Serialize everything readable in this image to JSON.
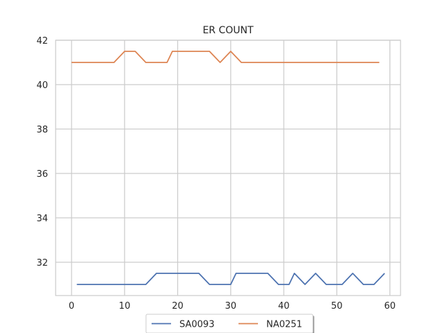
{
  "chart_data": {
    "type": "line",
    "title": "ER COUNT",
    "xlabel": "",
    "ylabel": "",
    "xlim": [
      -3,
      62
    ],
    "ylim": [
      30.5,
      42
    ],
    "xticks": [
      0,
      10,
      20,
      30,
      40,
      50,
      60
    ],
    "yticks": [
      32,
      34,
      36,
      38,
      40,
      42
    ],
    "grid": true,
    "legend_position": "bottom-center",
    "series": [
      {
        "name": "SA0093",
        "color": "#4c72b0",
        "x": [
          1,
          2,
          3,
          4,
          5,
          6,
          7,
          8,
          9,
          10,
          11,
          12,
          13,
          14,
          15,
          16,
          17,
          18,
          19,
          20,
          21,
          22,
          23,
          24,
          25,
          26,
          27,
          28,
          29,
          30,
          31,
          32,
          33,
          34,
          35,
          36,
          37,
          38,
          39,
          40,
          41,
          42,
          43,
          44,
          45,
          46,
          47,
          48,
          49,
          50,
          51,
          52,
          53,
          54,
          55,
          56,
          57,
          58,
          59
        ],
        "values": [
          31,
          31,
          31,
          31,
          31,
          31,
          31,
          31,
          31,
          31,
          31,
          31,
          31,
          31,
          31.25,
          31.5,
          31.5,
          31.5,
          31.5,
          31.5,
          31.5,
          31.5,
          31.5,
          31.5,
          31.25,
          31,
          31,
          31,
          31,
          31,
          31.5,
          31.5,
          31.5,
          31.5,
          31.5,
          31.5,
          31.5,
          31.25,
          31,
          31,
          31,
          31.5,
          31.25,
          31,
          31.25,
          31.5,
          31.25,
          31,
          31,
          31,
          31,
          31.25,
          31.5,
          31.25,
          31,
          31,
          31,
          31.25,
          31.5
        ]
      },
      {
        "name": "NA0251",
        "color": "#dd8452",
        "x": [
          0,
          1,
          2,
          3,
          4,
          5,
          6,
          7,
          8,
          9,
          10,
          11,
          12,
          13,
          14,
          15,
          16,
          17,
          18,
          19,
          20,
          21,
          22,
          23,
          24,
          25,
          26,
          27,
          28,
          29,
          30,
          31,
          32,
          33,
          34,
          35,
          36,
          37,
          38,
          39,
          40,
          41,
          42,
          43,
          44,
          45,
          46,
          47,
          48,
          49,
          50,
          51,
          52,
          53,
          54,
          55,
          56,
          57,
          58
        ],
        "values": [
          41,
          41,
          41,
          41,
          41,
          41,
          41,
          41,
          41,
          41.25,
          41.5,
          41.5,
          41.5,
          41.25,
          41,
          41,
          41,
          41,
          41,
          41.5,
          41.5,
          41.5,
          41.5,
          41.5,
          41.5,
          41.5,
          41.5,
          41.25,
          41,
          41.25,
          41.5,
          41.25,
          41,
          41,
          41,
          41,
          41,
          41,
          41,
          41,
          41,
          41,
          41,
          41,
          41,
          41,
          41,
          41,
          41,
          41,
          41,
          41,
          41,
          41,
          41,
          41,
          41,
          41,
          41
        ]
      }
    ]
  }
}
